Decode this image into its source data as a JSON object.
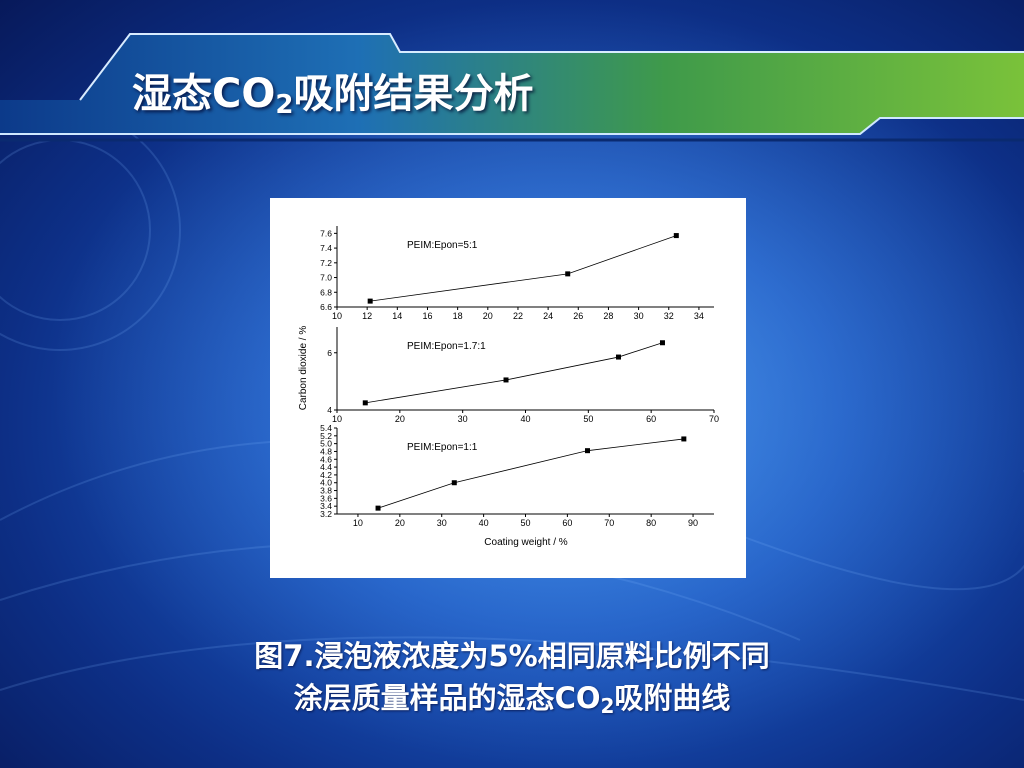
{
  "slide": {
    "title_prefix": "湿态CO",
    "title_sub": "2",
    "title_suffix": "吸附结果分析",
    "caption_line1": "图7.浸泡液浓度为5%相同原料比例不同",
    "caption_line2_prefix": "涂层质量样品的湿态CO",
    "caption_line2_sub": "2",
    "caption_line2_suffix": "吸附曲线"
  },
  "colors": {
    "background_dark": "#07195a",
    "background_light": "#2f7fe0",
    "banner_green": "#5aa82c",
    "title_text": "#ffffff"
  },
  "chart_data": {
    "type": "scatter",
    "ylabel": "Carbon dioxide / %",
    "xlabel": "Coating weight / %",
    "panels": [
      {
        "label": "PEIM:Epon=5:1",
        "x": [
          12.2,
          25.3,
          32.5
        ],
        "y": [
          6.68,
          7.05,
          7.57
        ],
        "xlim": [
          10,
          35
        ],
        "ylim": [
          6.6,
          7.7
        ],
        "xticks": [
          "10",
          "12",
          "14",
          "16",
          "18",
          "20",
          "22",
          "24",
          "26",
          "28",
          "30",
          "32",
          "34"
        ],
        "yticks": [
          "6.6",
          "6.8",
          "7.0",
          "7.2",
          "7.4",
          "7.6"
        ],
        "xtick_values": [
          10,
          12,
          14,
          16,
          18,
          20,
          22,
          24,
          26,
          28,
          30,
          32,
          34
        ],
        "ytick_values": [
          6.6,
          6.8,
          7.0,
          7.2,
          7.4,
          7.6
        ]
      },
      {
        "label": "PEIM:Epon=1.7:1",
        "x": [
          14.5,
          36.9,
          54.8,
          61.8
        ],
        "y": [
          4.25,
          5.05,
          5.85,
          6.35
        ],
        "xlim": [
          10,
          70
        ],
        "ylim": [
          4,
          6.9
        ],
        "xticks": [
          "10",
          "20",
          "30",
          "40",
          "50",
          "60",
          "70"
        ],
        "yticks": [
          "4",
          "6"
        ],
        "xtick_values": [
          10,
          20,
          30,
          40,
          50,
          60,
          70
        ],
        "ytick_values": [
          4,
          6
        ]
      },
      {
        "label": "PEIM:Epon=1:1",
        "x": [
          14.8,
          33.0,
          64.8,
          87.8
        ],
        "y": [
          3.35,
          4.0,
          4.82,
          5.12
        ],
        "xlim": [
          5,
          95
        ],
        "ylim": [
          3.2,
          5.4
        ],
        "xticks": [
          "10",
          "20",
          "30",
          "40",
          "50",
          "60",
          "70",
          "80",
          "90"
        ],
        "yticks": [
          "3.2",
          "3.4",
          "3.6",
          "3.8",
          "4.0",
          "4.2",
          "4.4",
          "4.6",
          "4.8",
          "5.0",
          "5.2",
          "5.4"
        ],
        "xtick_values": [
          10,
          20,
          30,
          40,
          50,
          60,
          70,
          80,
          90
        ],
        "ytick_values": [
          3.2,
          3.4,
          3.6,
          3.8,
          4.0,
          4.2,
          4.4,
          4.6,
          4.8,
          5.0,
          5.2,
          5.4
        ]
      }
    ]
  }
}
